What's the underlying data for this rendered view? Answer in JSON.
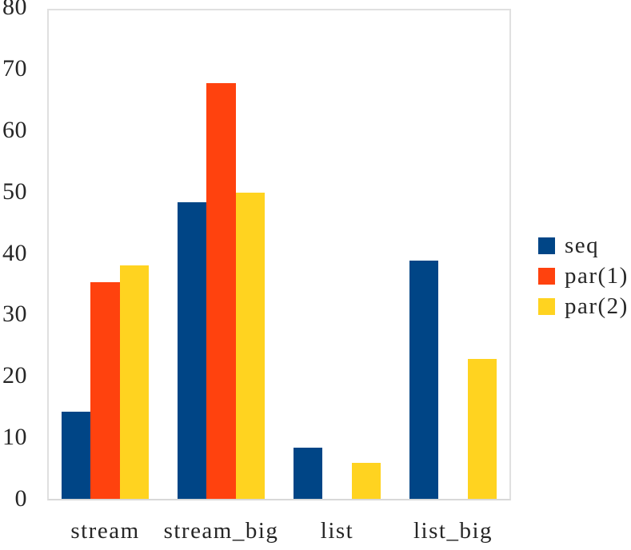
{
  "chart_data": {
    "type": "bar",
    "title": "",
    "xlabel": "",
    "ylabel": "",
    "categories": [
      "stream",
      "stream_big",
      "list",
      "list_big"
    ],
    "series": [
      {
        "name": "seq",
        "color": "#004586",
        "values": [
          14.2,
          48.2,
          8.3,
          38.8
        ]
      },
      {
        "name": "par(1)",
        "color": "#FF420E",
        "values": [
          35.3,
          67.7,
          0,
          0
        ]
      },
      {
        "name": "par(2)",
        "color": "#FFD320",
        "values": [
          38.0,
          49.8,
          5.8,
          22.8
        ]
      }
    ],
    "ylim": [
      0,
      80
    ],
    "yticks": [
      0,
      10,
      20,
      30,
      40,
      50,
      60,
      70,
      80
    ],
    "grid": false,
    "legend_position": "right",
    "plot_background": "#ffffff",
    "plot_border_color": "#e0e0e0",
    "text_color": "#262626"
  }
}
